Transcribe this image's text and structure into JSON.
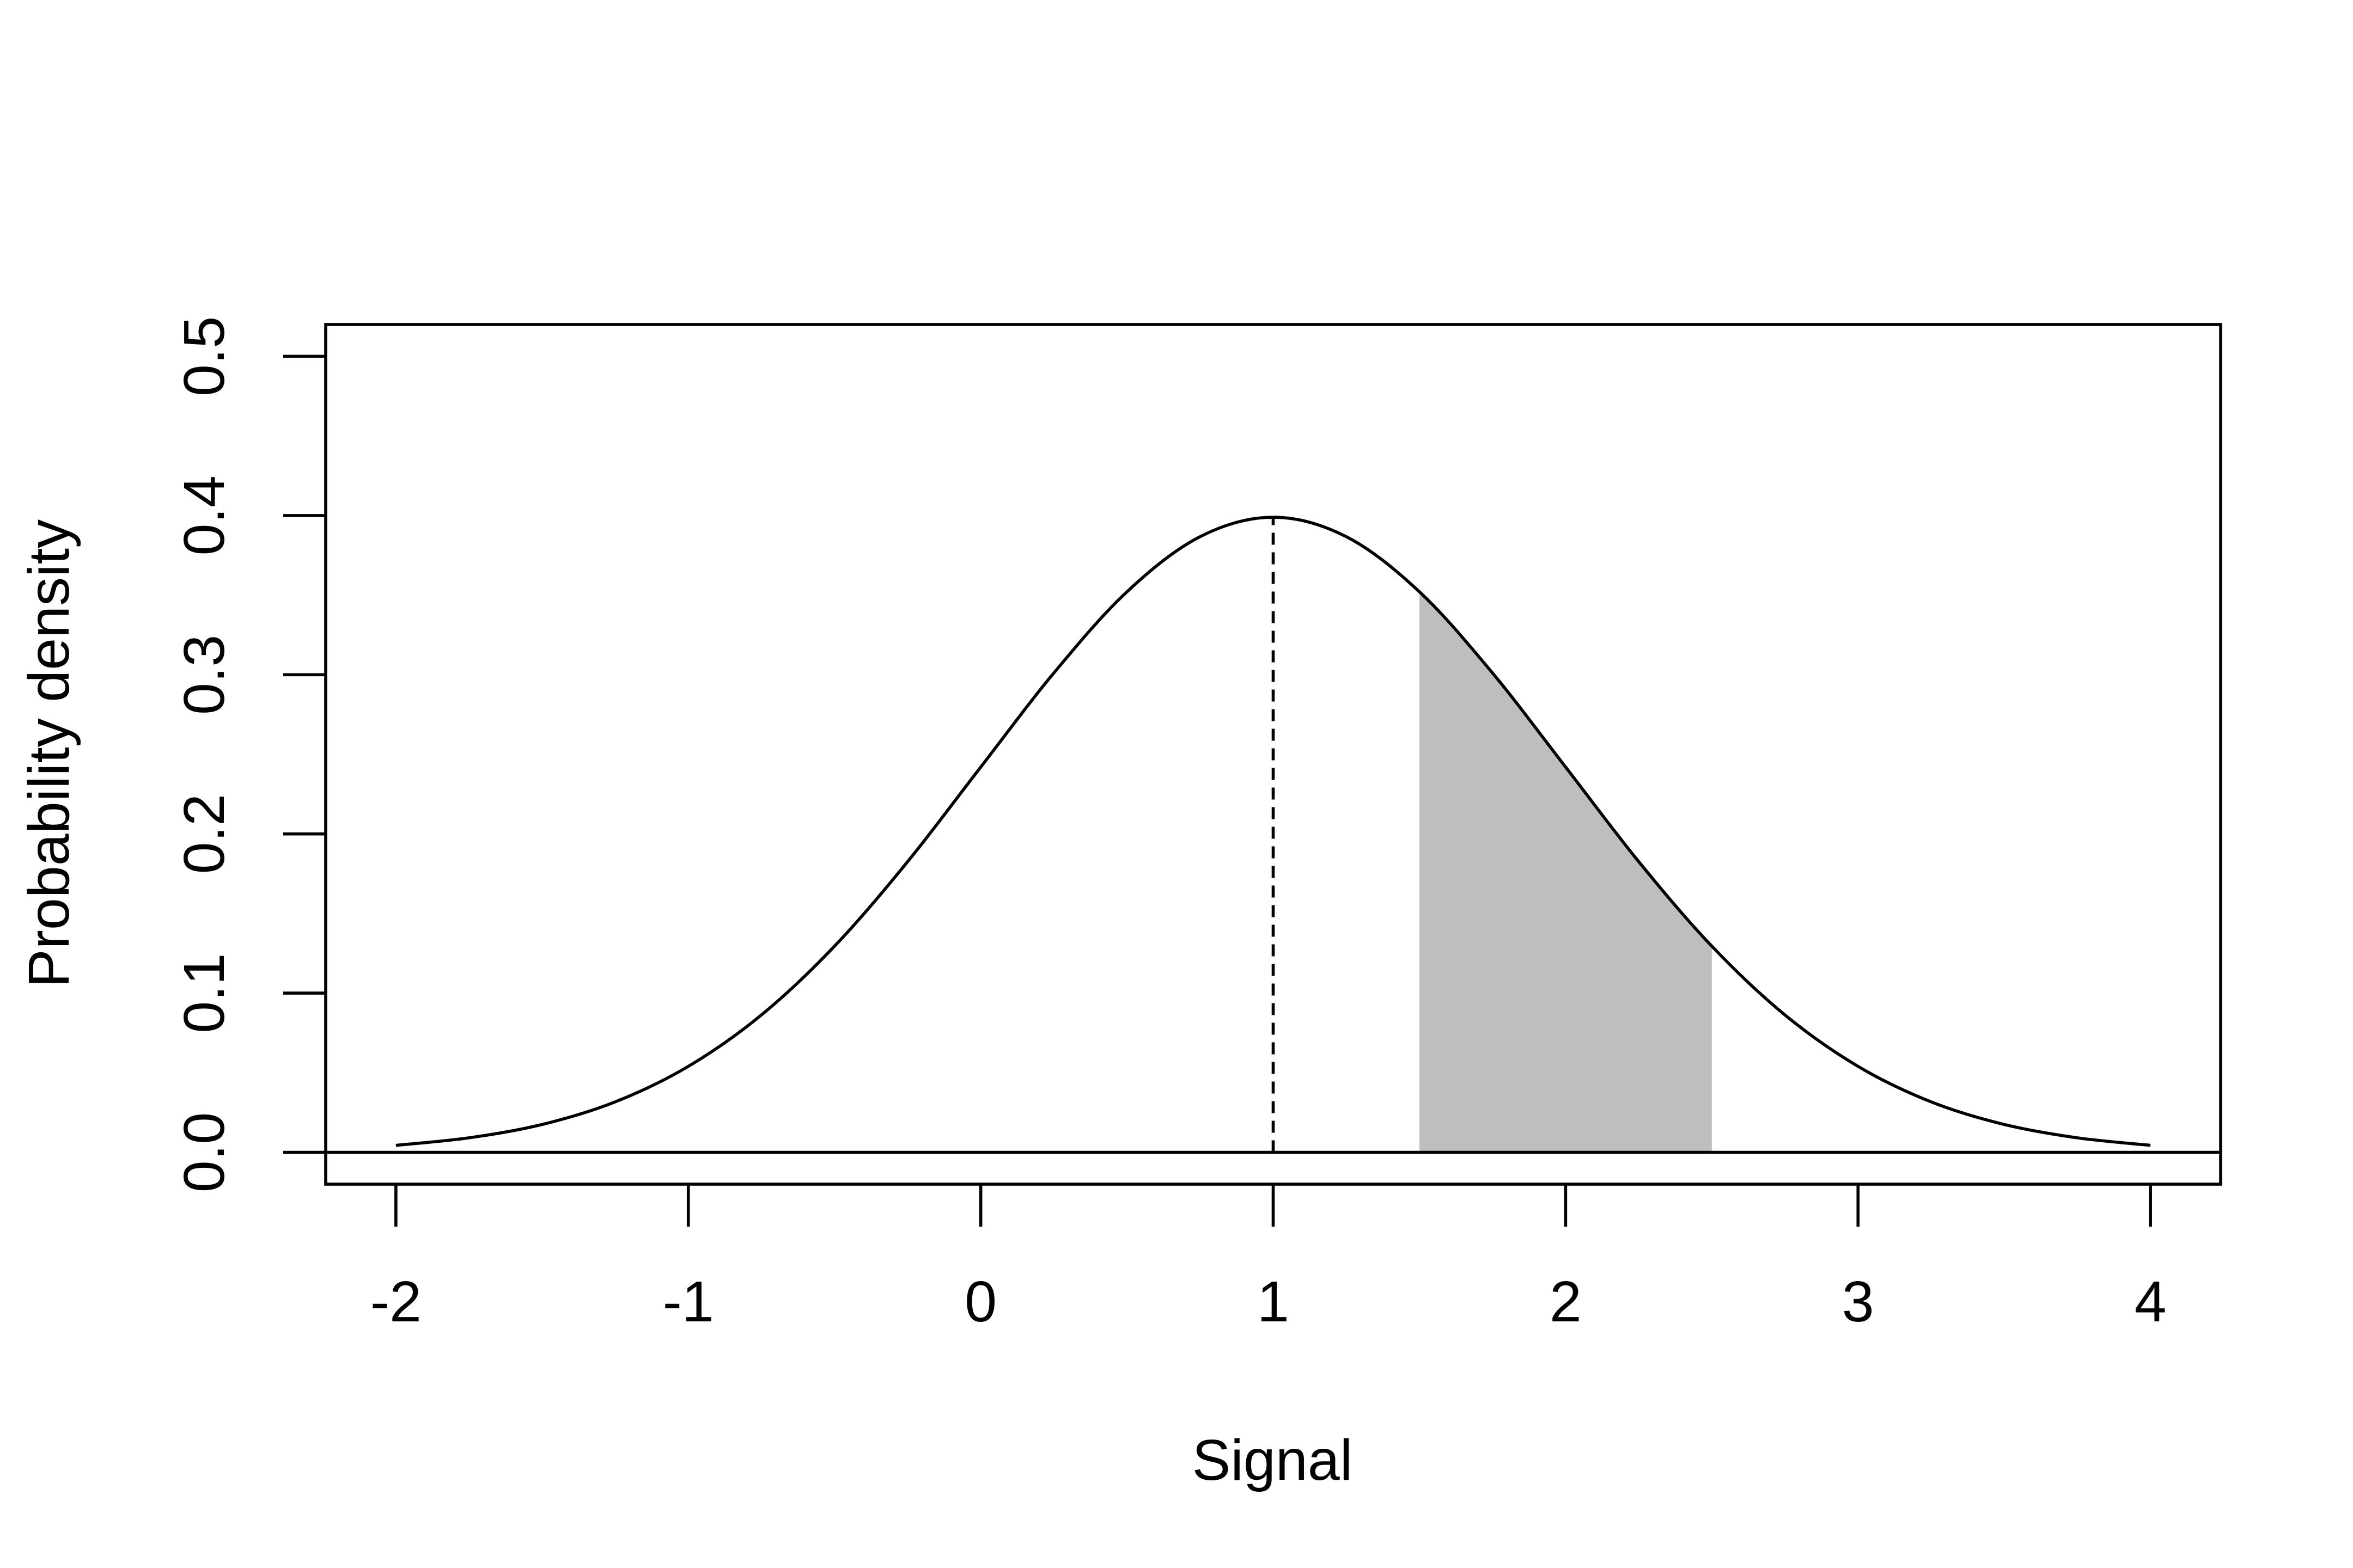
{
  "chart_data": {
    "type": "line",
    "x_label": "Signal",
    "y_label": "Probability density",
    "x": [
      -2,
      -1.75,
      -1.5,
      -1.25,
      -1,
      -0.75,
      -0.5,
      -0.25,
      0,
      0.25,
      0.5,
      0.75,
      1,
      1.25,
      1.5,
      1.75,
      2,
      2.25,
      2.5,
      2.75,
      3,
      3.25,
      3.5,
      3.75,
      4
    ],
    "values": [
      0.0044,
      0.0091,
      0.0175,
      0.0317,
      0.054,
      0.0863,
      0.1295,
      0.1826,
      0.242,
      0.3011,
      0.3521,
      0.3867,
      0.3989,
      0.3867,
      0.3521,
      0.3011,
      0.242,
      0.1826,
      0.1295,
      0.0863,
      0.054,
      0.0317,
      0.0175,
      0.0091,
      0.0044
    ],
    "color": "#000000",
    "shade": {
      "from": 1.5,
      "to": 2.5,
      "color": "#bebebe"
    },
    "vline": 1,
    "hline": 0,
    "xlim": [
      -2.24,
      4.24
    ],
    "xticks": [
      -2,
      -1,
      0,
      1,
      2,
      3,
      4
    ],
    "ylim": [
      -0.02,
      0.52
    ],
    "yticks": [
      {
        "value": 0,
        "label": "0.0"
      },
      0.1,
      0.2,
      0.3,
      0.4,
      0.5
    ]
  }
}
